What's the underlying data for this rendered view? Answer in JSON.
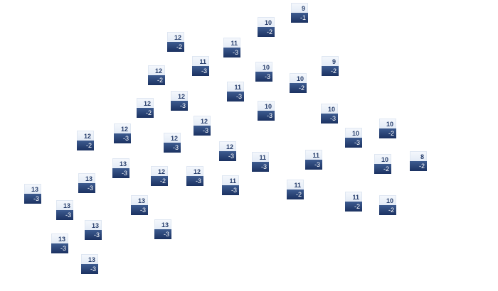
{
  "labels": [
    {
      "top": "9",
      "bottom": "-1"
    },
    {
      "top": "10",
      "bottom": "-2"
    },
    {
      "top": "12",
      "bottom": "-2"
    },
    {
      "top": "11",
      "bottom": "-3"
    },
    {
      "top": "11",
      "bottom": "-3"
    },
    {
      "top": "9",
      "bottom": "-2"
    },
    {
      "top": "10",
      "bottom": "-3"
    },
    {
      "top": "12",
      "bottom": "-2"
    },
    {
      "top": "10",
      "bottom": "-2"
    },
    {
      "top": "11",
      "bottom": "-3"
    },
    {
      "top": "12",
      "bottom": "-3"
    },
    {
      "top": "12",
      "bottom": "-2"
    },
    {
      "top": "10",
      "bottom": "-3"
    },
    {
      "top": "10",
      "bottom": "-3"
    },
    {
      "top": "12",
      "bottom": "-3"
    },
    {
      "top": "10",
      "bottom": "-2"
    },
    {
      "top": "12",
      "bottom": "-3"
    },
    {
      "top": "12",
      "bottom": "-2"
    },
    {
      "top": "10",
      "bottom": "-3"
    },
    {
      "top": "12",
      "bottom": "-3"
    },
    {
      "top": "12",
      "bottom": "-3"
    },
    {
      "top": "11",
      "bottom": "-3"
    },
    {
      "top": "11",
      "bottom": "-3"
    },
    {
      "top": "10",
      "bottom": "-2"
    },
    {
      "top": "8",
      "bottom": "-2"
    },
    {
      "top": "13",
      "bottom": "-3"
    },
    {
      "top": "12",
      "bottom": "-2"
    },
    {
      "top": "12",
      "bottom": "-3"
    },
    {
      "top": "13",
      "bottom": "-3"
    },
    {
      "top": "11",
      "bottom": "-3"
    },
    {
      "top": "11",
      "bottom": "-2"
    },
    {
      "top": "13",
      "bottom": "-3"
    },
    {
      "top": "11",
      "bottom": "-2"
    },
    {
      "top": "10",
      "bottom": "-2"
    },
    {
      "top": "13",
      "bottom": "-3"
    },
    {
      "top": "13",
      "bottom": "-3"
    },
    {
      "top": "13",
      "bottom": "-3"
    },
    {
      "top": "13",
      "bottom": "-3"
    },
    {
      "top": "13",
      "bottom": "-3"
    },
    {
      "top": "13",
      "bottom": "-3"
    }
  ],
  "colors": {
    "label_top_text": "#263d6b",
    "label_bottom_bg": "#1b3161",
    "label_bottom_text": "#ffffff"
  }
}
